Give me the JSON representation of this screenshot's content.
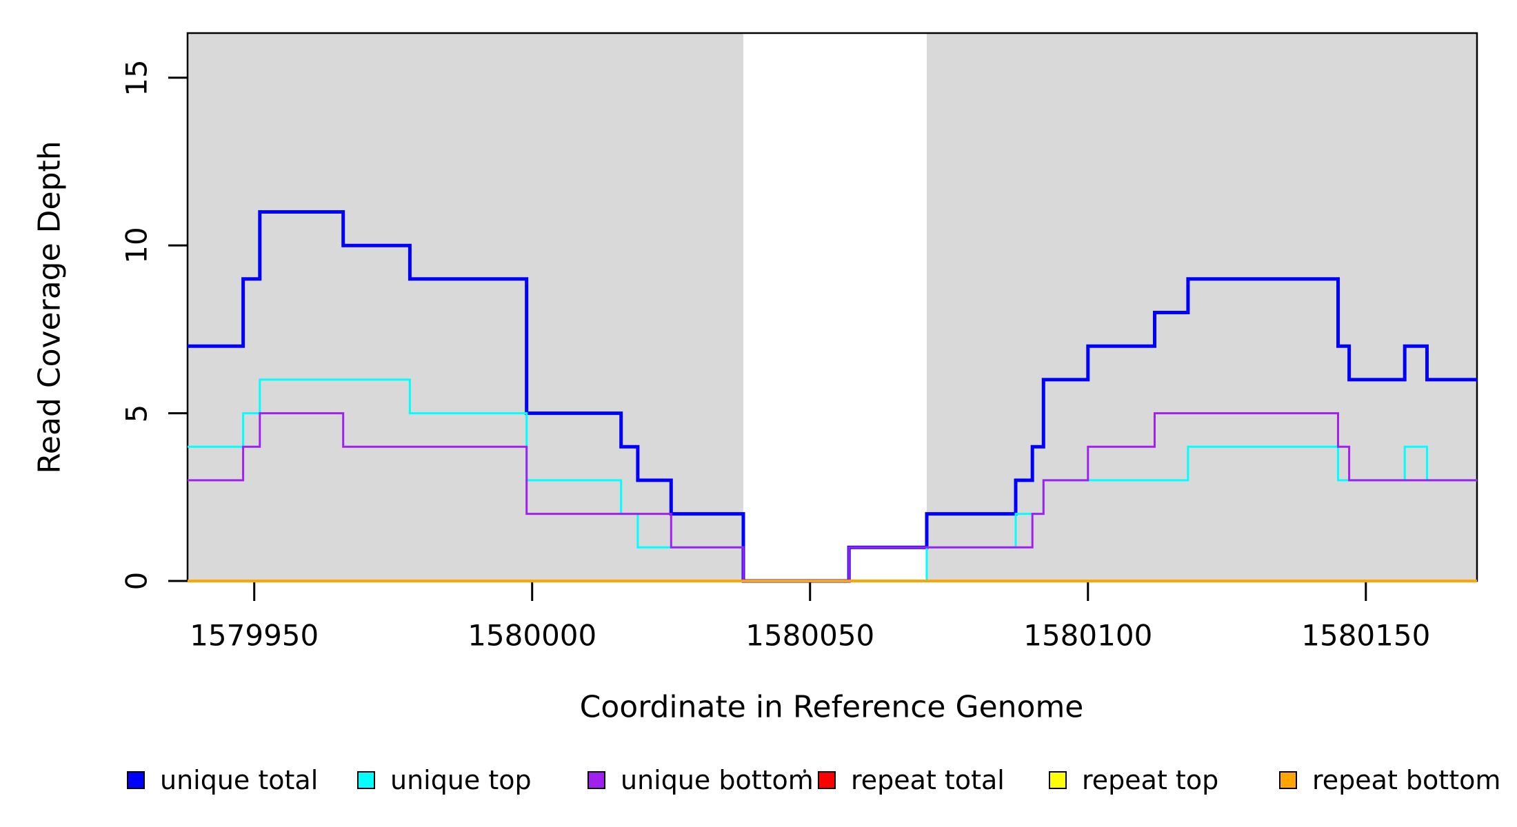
{
  "chart_data": {
    "type": "line",
    "subtype": "step-coverage-plot",
    "title": "",
    "xlabel": "Coordinate in Reference Genome",
    "ylabel": "Read Coverage Depth",
    "x_ticks": [
      "1579950",
      "1580000",
      "1580050",
      "1580100",
      "1580150"
    ],
    "x_tick_values": [
      1579950,
      1580000,
      1580050,
      1580100,
      1580150
    ],
    "y_ticks": [
      "0",
      "5",
      "10",
      "15"
    ],
    "y_tick_values": [
      0,
      5,
      10,
      15
    ],
    "xlim": [
      1579938,
      1580170
    ],
    "ylim": [
      0,
      16.33
    ],
    "grid": false,
    "background_color": "#FFFFFF",
    "plot_box_color": "#000000",
    "shaded_region_color": "#D9D9D9",
    "shaded_regions": [
      {
        "name": "left-gray-region",
        "from": 1579938,
        "to": 1580038
      },
      {
        "name": "right-gray-region",
        "from": 1580071,
        "to": 1580170
      }
    ],
    "gap_region": {
      "name": "white-gap-region",
      "from": 1580038,
      "to": 1580071
    },
    "breakpoints": [
      1579938,
      1579948,
      1579951,
      1579966,
      1579978,
      1579999,
      1580016,
      1580019,
      1580025,
      1580038,
      1580057,
      1580071,
      1580087,
      1580090,
      1580092,
      1580100,
      1580112,
      1580118,
      1580145,
      1580147,
      1580157,
      1580161,
      1580170
    ],
    "series": [
      {
        "name": "unique total",
        "color": "#0000FF",
        "line_width": 5,
        "values": [
          7,
          9,
          11,
          10,
          9,
          5,
          4,
          3,
          2,
          0,
          1,
          2,
          3,
          4,
          6,
          7,
          8,
          9,
          7,
          6,
          7,
          6
        ]
      },
      {
        "name": "unique top",
        "color": "#00FFFF",
        "line_width": 3,
        "values": [
          4,
          5,
          6,
          6,
          5,
          3,
          2,
          1,
          1,
          0,
          0,
          1,
          2,
          2,
          3,
          3,
          3,
          4,
          3,
          3,
          4,
          3
        ]
      },
      {
        "name": "unique bottom",
        "color": "#A020F0",
        "line_width": 3,
        "values": [
          3,
          4,
          5,
          4,
          4,
          2,
          2,
          2,
          1,
          0,
          1,
          1,
          1,
          2,
          3,
          4,
          5,
          5,
          4,
          3,
          3,
          3
        ]
      },
      {
        "name": "repeat total",
        "color": "#FF0000",
        "line_width": 2.5,
        "values": [
          0,
          0,
          0,
          0,
          0,
          0,
          0,
          0,
          0,
          0,
          0,
          0,
          0,
          0,
          0,
          0,
          0,
          0,
          0,
          0,
          0,
          0
        ]
      },
      {
        "name": "repeat top",
        "color": "#FFFF00",
        "line_width": 2.5,
        "values": [
          0,
          0,
          0,
          0,
          0,
          0,
          0,
          0,
          0,
          0,
          0,
          0,
          0,
          0,
          0,
          0,
          0,
          0,
          0,
          0,
          0,
          0
        ]
      },
      {
        "name": "repeat bottom",
        "color": "#FFA500",
        "line_width": 4,
        "values": [
          0,
          0,
          0,
          0,
          0,
          0,
          0,
          0,
          0,
          0,
          0,
          0,
          0,
          0,
          0,
          0,
          0,
          0,
          0,
          0,
          0,
          0
        ]
      }
    ],
    "legend": {
      "position": "bottom",
      "entries": [
        {
          "label": "unique total",
          "color": "#0000FF"
        },
        {
          "label": "unique top",
          "color": "#00FFFF"
        },
        {
          "label": "unique bottom",
          "color": "#A020F0"
        },
        {
          "label": "repeat total",
          "color": "#FF0000"
        },
        {
          "label": "repeat top",
          "color": "#FFFF00"
        },
        {
          "label": "repeat bottom",
          "color": "#FFA500"
        }
      ]
    }
  }
}
